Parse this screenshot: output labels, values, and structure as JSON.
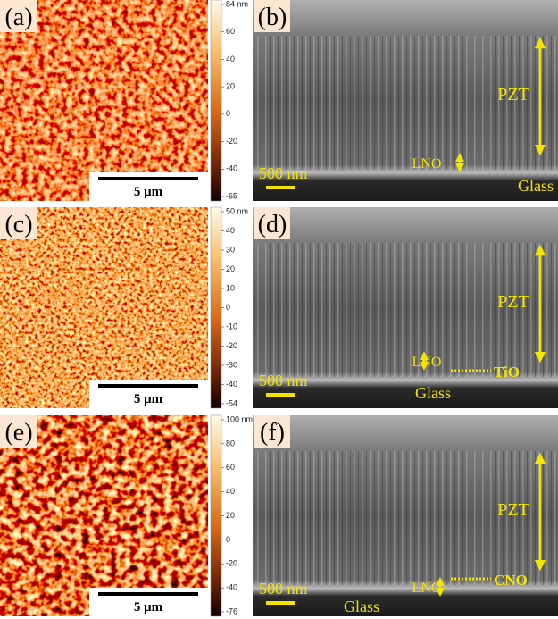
{
  "panels": [
    {
      "afm": {
        "label": "(a)",
        "scale_bar": "5 μm",
        "colorbar_ticks": [
          "84 nm",
          "60",
          "40",
          "20",
          "0",
          "-20",
          "-40",
          "-65"
        ]
      },
      "sem": {
        "label": "(b)",
        "layer": "PZT",
        "electrode": "LNO",
        "scale_bar": "500 nm",
        "substrate": "Glass"
      }
    },
    {
      "afm": {
        "label": "(c)",
        "scale_bar": "5 μm",
        "colorbar_ticks": [
          "50 nm",
          "40",
          "30",
          "20",
          "10",
          "0",
          "-10",
          "-20",
          "-30",
          "-40",
          "-54"
        ]
      },
      "sem": {
        "label": "(d)",
        "layer": "PZT",
        "electrode": "LNO",
        "scale_bar": "500 nm",
        "substrate": "Glass",
        "seed": "TiO"
      }
    },
    {
      "afm": {
        "label": "(e)",
        "scale_bar": "5 μm",
        "colorbar_ticks": [
          "100 nm",
          "80",
          "60",
          "40",
          "20",
          "0",
          "-20",
          "-40",
          "-76"
        ]
      },
      "sem": {
        "label": "(f)",
        "layer": "PZT",
        "electrode": "LNO",
        "scale_bar": "500 nm",
        "substrate": "Glass",
        "seed": "CNO"
      }
    }
  ]
}
